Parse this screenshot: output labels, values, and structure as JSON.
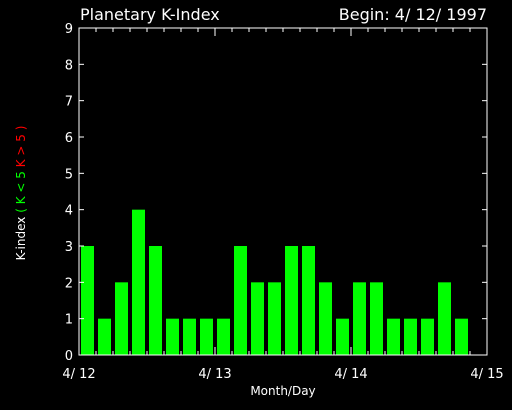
{
  "chart_data": {
    "type": "bar",
    "title": "Planetary K-Index",
    "subtitle": "Begin: 4/ 12/ 1997",
    "xlabel": "Month/Day",
    "ylabel_parts": [
      {
        "text": "K-index",
        "color": "#ffffff"
      },
      {
        "text": "( K < 5",
        "color": "#00ff00"
      },
      {
        "text": "K > 5 )",
        "color": "#ff0000"
      }
    ],
    "ylim": [
      0,
      9
    ],
    "yticks": [
      "0",
      "1",
      "2",
      "3",
      "4",
      "5",
      "6",
      "7",
      "8",
      "9"
    ],
    "xticks": [
      "4/ 12",
      "4/ 13",
      "4/ 14",
      "4/ 15"
    ],
    "days": 3,
    "intervals_per_day": 8,
    "values": [
      3,
      1,
      2,
      4,
      3,
      1,
      1,
      1,
      1,
      3,
      2,
      2,
      3,
      3,
      2,
      1,
      2,
      2,
      1,
      1,
      1,
      2,
      1
    ],
    "threshold": 5,
    "colors": {
      "low": "#00ff00",
      "high": "#ff0000",
      "axis": "#ffffff",
      "background": "#000000"
    }
  }
}
